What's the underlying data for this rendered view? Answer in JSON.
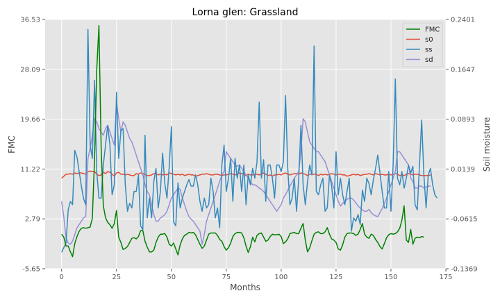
{
  "chart_data": {
    "type": "line",
    "title": "Lorna glen: Grassland",
    "xlabel": "Months",
    "ylabel": "FMC",
    "y2label": "Soil moisture",
    "xlim": [
      -7.5,
      175
    ],
    "xticks": [
      0,
      25,
      50,
      75,
      100,
      125,
      150,
      175
    ],
    "ylim": [
      -5.65,
      36.53
    ],
    "yticks": [
      "-5.65",
      "2.79",
      "11.22",
      "19.66",
      "28.09",
      "36.53"
    ],
    "y2lim": [
      -0.1369,
      0.2401
    ],
    "y2ticks": [
      "-0.1369",
      "-0.0615",
      "0.0139",
      "0.0893",
      "0.1647",
      "0.2401"
    ],
    "grid": true,
    "legend_position": "top-right",
    "colors": {
      "FMC": "#008000",
      "s0": "#E24A33",
      "ss": "#348ABD",
      "sd": "#988ED5",
      "background": "#E5E5E5",
      "grid": "#FFFFFF"
    },
    "series": [
      {
        "name": "FMC",
        "axis": "left",
        "values": [
          0.2,
          -0.3,
          -1.8,
          -1.8,
          -2.8,
          -3.6,
          -1.4,
          -0.2,
          0.7,
          1.2,
          1.3,
          1.2,
          1.3,
          1.4,
          2.9,
          13.0,
          28.0,
          35.5,
          15.0,
          5.0,
          3.0,
          2.2,
          1.8,
          1.2,
          2.0,
          4.2,
          -0.3,
          -1.2,
          -2.4,
          -2.2,
          -1.9,
          -1.2,
          -0.5,
          -0.4,
          -0.6,
          -0.2,
          0.8,
          0.8,
          -1.0,
          -2.0,
          -2.8,
          -2.8,
          -2.5,
          -1.2,
          -0.3,
          0.2,
          0.2,
          0.3,
          -0.3,
          -1.5,
          -1.8,
          -1.3,
          -2.3,
          -3.3,
          -1.6,
          -0.6,
          0.0,
          0.2,
          0.5,
          0.4,
          0.5,
          0.1,
          -0.7,
          -1.5,
          -2.2,
          -1.8,
          -0.8,
          0.2,
          0.4,
          0.4,
          0.4,
          0.0,
          -0.7,
          -1.0,
          -1.9,
          -2.5,
          -2.1,
          -1.3,
          -0.2,
          0.3,
          0.5,
          0.5,
          0.4,
          -0.4,
          -1.8,
          -2.9,
          -1.9,
          -0.3,
          -1.1,
          0.0,
          0.3,
          0.4,
          -0.3,
          -1.0,
          -0.8,
          -0.2,
          0.2,
          0.1,
          0.1,
          0.2,
          -0.2,
          -1.4,
          -1.1,
          -0.6,
          0.3,
          0.4,
          0.5,
          0.3,
          0.3,
          1.2,
          2.0,
          -0.8,
          -2.8,
          -2.1,
          -0.9,
          0.2,
          0.5,
          0.6,
          0.3,
          0.3,
          0.6,
          1.3,
          0.2,
          -0.6,
          -0.8,
          -1.2,
          -2.3,
          -2.5,
          -1.6,
          -0.3,
          0.3,
          0.4,
          0.4,
          0.3,
          0.0,
          0.2,
          1.0,
          2.0,
          0.2,
          -0.3,
          -0.5,
          0.2,
          0.0,
          -0.7,
          -1.2,
          -1.9,
          -2.3,
          -1.4,
          -0.4,
          0.1,
          0.3,
          0.2,
          0.3,
          0.6,
          1.2,
          2.6,
          5.0,
          -0.8,
          -1.2,
          1.0,
          -1.5,
          -0.5,
          -0.3,
          -0.4,
          -0.2,
          -0.3
        ]
      },
      {
        "name": "s0",
        "axis": "right",
        "values": [
          0.0,
          0.003,
          0.006,
          0.006,
          0.007,
          0.006,
          0.008,
          0.007,
          0.008,
          0.008,
          0.007,
          0.006,
          0.01,
          0.011,
          0.01,
          0.01,
          0.006,
          0.004,
          0.005,
          0.009,
          0.007,
          0.01,
          0.009,
          0.006,
          0.003,
          0.008,
          0.009,
          0.006,
          0.006,
          0.005,
          0.006,
          0.005,
          0.004,
          0.004,
          0.007,
          0.006,
          0.008,
          0.007,
          0.006,
          0.004,
          0.004,
          0.005,
          0.007,
          0.007,
          0.005,
          0.006,
          0.005,
          0.006,
          0.005,
          0.008,
          0.007,
          0.006,
          0.005,
          0.006,
          0.005,
          0.006,
          0.004,
          0.005,
          0.006,
          0.005,
          0.005,
          0.003,
          0.004,
          0.005,
          0.006,
          0.006,
          0.007,
          0.006,
          0.005,
          0.005,
          0.006,
          0.006,
          0.005,
          0.004,
          0.005,
          0.005,
          0.006,
          0.007,
          0.006,
          0.005,
          0.006,
          0.008,
          0.007,
          0.006,
          0.004,
          0.006,
          0.005,
          0.005,
          0.006,
          0.006,
          0.005,
          0.006,
          0.008,
          0.006,
          0.004,
          0.005,
          0.003,
          0.005,
          0.005,
          0.006,
          0.005,
          0.007,
          0.008,
          0.006,
          0.005,
          0.006,
          0.007,
          0.007,
          0.006,
          0.008,
          0.007,
          0.006,
          0.004,
          0.006,
          0.006,
          0.006,
          0.006,
          0.004,
          0.006,
          0.005,
          0.006,
          0.005,
          0.006,
          0.007,
          0.006,
          0.005,
          0.006,
          0.006,
          0.005,
          0.005,
          0.003,
          0.004,
          0.005,
          0.006,
          0.005,
          0.006,
          0.004,
          0.005,
          0.006,
          0.006,
          0.007,
          0.006,
          0.005,
          0.007,
          0.006,
          0.005,
          0.006,
          0.005,
          0.005,
          0.006,
          0.005,
          0.006,
          0.007,
          0.006,
          0.004,
          0.005,
          0.004,
          0.006,
          0.007,
          0.006,
          0.005,
          0.006,
          0.006,
          0.005,
          0.004,
          0.004,
          0.004,
          0.004,
          0.005
        ]
      },
      {
        "name": "ss",
        "axis": "right",
        "values": [
          -0.112,
          -0.105,
          -0.098,
          -0.048,
          -0.035,
          -0.04,
          0.042,
          0.032,
          0.01,
          -0.012,
          -0.031,
          -0.04,
          0.225,
          0.05,
          0.03,
          0.148,
          0.01,
          -0.03,
          -0.03,
          0.02,
          0.05,
          0.08,
          0.05,
          -0.025,
          -0.01,
          0.13,
          0.03,
          0.072,
          0.075,
          -0.01,
          -0.05,
          -0.038,
          -0.045,
          -0.02,
          -0.02,
          0.005,
          -0.072,
          -0.078,
          0.065,
          -0.06,
          -0.03,
          -0.06,
          -0.005,
          0.015,
          -0.045,
          -0.02,
          0.038,
          -0.008,
          -0.03,
          0.017,
          0.078,
          -0.066,
          -0.072,
          -0.007,
          -0.045,
          -0.03,
          -0.02,
          -0.01,
          -0.002,
          -0.012,
          -0.012,
          0.005,
          -0.01,
          -0.035,
          -0.05,
          -0.03,
          -0.045,
          -0.04,
          0.0,
          -0.02,
          -0.06,
          -0.045,
          -0.075,
          0.02,
          0.05,
          -0.02,
          0.0,
          0.03,
          -0.035,
          0.03,
          0.0,
          0.02,
          -0.02,
          0.02,
          -0.04,
          0.005,
          -0.01,
          0.015,
          0.0,
          0.025,
          0.115,
          0.0,
          0.028,
          -0.035,
          0.02,
          0.02,
          0.0,
          -0.03,
          0.02,
          0.02,
          0.01,
          0.025,
          0.125,
          0.015,
          -0.04,
          -0.03,
          0.0,
          -0.05,
          0.0,
          0.08,
          -0.01,
          -0.04,
          -0.005,
          0.02,
          0.005,
          0.2,
          -0.02,
          -0.025,
          -0.01,
          0.0,
          -0.05,
          -0.045,
          0.005,
          -0.012,
          -0.045,
          0.04,
          -0.025,
          0.0,
          -0.025,
          -0.04,
          -0.02,
          0.0,
          -0.08,
          -0.06,
          -0.065,
          -0.055,
          -0.07,
          -0.018,
          -0.035,
          0.0,
          -0.008,
          -0.025,
          -0.002,
          0.015,
          0.035,
          0.008,
          -0.02,
          -0.045,
          -0.045,
          0.01,
          -0.05,
          0.02,
          0.15,
          0.0,
          -0.01,
          0.01,
          -0.015,
          0.0,
          0.02,
          0.008,
          0.018,
          -0.04,
          -0.048,
          0.02,
          0.088,
          0.005,
          -0.045,
          0.005,
          0.015,
          -0.01,
          -0.025,
          -0.03
        ]
      },
      {
        "name": "sd",
        "axis": "right",
        "values": [
          -0.035,
          -0.058,
          -0.09,
          -0.098,
          -0.1,
          -0.095,
          -0.085,
          -0.075,
          -0.07,
          -0.065,
          -0.06,
          -0.058,
          0.03,
          0.045,
          0.065,
          0.09,
          0.085,
          0.075,
          0.07,
          0.065,
          0.075,
          0.08,
          0.07,
          0.06,
          0.05,
          0.115,
          0.09,
          0.07,
          0.085,
          0.08,
          0.07,
          0.06,
          0.055,
          0.045,
          0.035,
          0.025,
          0.015,
          0.005,
          -0.01,
          -0.02,
          -0.025,
          -0.04,
          -0.055,
          -0.065,
          -0.065,
          -0.06,
          -0.058,
          -0.055,
          -0.05,
          -0.04,
          -0.03,
          -0.025,
          -0.02,
          -0.015,
          -0.017,
          -0.03,
          -0.04,
          -0.05,
          -0.058,
          -0.062,
          -0.065,
          -0.07,
          -0.075,
          -0.08,
          -0.1,
          -0.085,
          -0.065,
          -0.055,
          -0.045,
          -0.035,
          -0.025,
          -0.015,
          -0.005,
          0.005,
          0.01,
          0.04,
          0.035,
          0.03,
          0.025,
          0.02,
          0.018,
          0.02,
          0.015,
          0.01,
          0.005,
          0.0,
          -0.005,
          -0.01,
          -0.01,
          -0.012,
          -0.015,
          -0.017,
          -0.02,
          -0.025,
          -0.03,
          -0.035,
          -0.04,
          -0.045,
          -0.05,
          -0.045,
          -0.04,
          -0.03,
          -0.025,
          -0.018,
          -0.012,
          -0.006,
          0.0,
          0.005,
          0.01,
          0.04,
          0.09,
          0.085,
          0.07,
          0.055,
          0.05,
          0.045,
          0.04,
          0.04,
          0.035,
          0.03,
          0.025,
          0.015,
          0.005,
          -0.005,
          -0.015,
          -0.025,
          -0.035,
          -0.042,
          -0.038,
          -0.035,
          -0.032,
          -0.03,
          -0.03,
          -0.033,
          -0.037,
          -0.042,
          -0.045,
          -0.048,
          -0.05,
          -0.05,
          -0.047,
          -0.052,
          -0.055,
          -0.057,
          -0.058,
          -0.052,
          -0.046,
          -0.038,
          -0.03,
          -0.02,
          -0.01,
          0.0,
          0.01,
          0.04,
          0.04,
          0.035,
          0.03,
          0.025,
          0.02,
          0.0,
          -0.005,
          -0.015,
          -0.015,
          -0.012,
          -0.012,
          -0.015,
          -0.013,
          -0.012,
          -0.012
        ]
      }
    ]
  }
}
